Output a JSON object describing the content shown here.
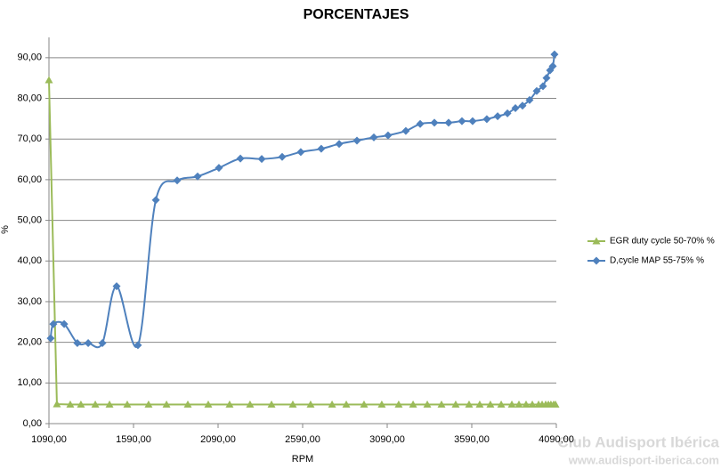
{
  "chart_data": {
    "type": "line",
    "title": "PORCENTAJES",
    "x_label": "RPM",
    "y_label": "%",
    "xlim": [
      1090,
      4090
    ],
    "xticks": [
      {
        "value": 1090,
        "label": "1090,00"
      },
      {
        "value": 1590,
        "label": "1590,00"
      },
      {
        "value": 2090,
        "label": "2090,00"
      },
      {
        "value": 2590,
        "label": "2590,00"
      },
      {
        "value": 3090,
        "label": "3090,00"
      },
      {
        "value": 3590,
        "label": "3590,00"
      },
      {
        "value": 4090,
        "label": "4090,00"
      }
    ],
    "ylim": [
      0,
      95
    ],
    "yticks": [
      {
        "value": 0,
        "label": "0,00"
      },
      {
        "value": 10,
        "label": "10,00"
      },
      {
        "value": 20,
        "label": "20,00"
      },
      {
        "value": 30,
        "label": "30,00"
      },
      {
        "value": 40,
        "label": "40,00"
      },
      {
        "value": 50,
        "label": "50,00"
      },
      {
        "value": 60,
        "label": "60,00"
      },
      {
        "value": 70,
        "label": "70,00"
      },
      {
        "value": 80,
        "label": "80,00"
      },
      {
        "value": 90,
        "label": "90,00"
      }
    ],
    "grid": true,
    "legend": "right",
    "series": [
      {
        "name": "EGR duty cycle 50-70%  %",
        "color": "#9bbb59",
        "marker": "triangle",
        "smooth": false,
        "x": [
          1090,
          1137,
          1216,
          1279,
          1364,
          1448,
          1553,
          1679,
          1785,
          1911,
          2032,
          2158,
          2279,
          2406,
          2532,
          2637,
          2764,
          2848,
          2953,
          3058,
          3158,
          3243,
          3327,
          3411,
          3495,
          3574,
          3637,
          3700,
          3764,
          3827,
          3869,
          3911,
          3948,
          3985,
          4006,
          4027,
          4043,
          4058,
          4074,
          4085
        ],
        "values": [
          84.5,
          4.8,
          4.7,
          4.7,
          4.7,
          4.7,
          4.7,
          4.7,
          4.7,
          4.7,
          4.7,
          4.7,
          4.7,
          4.7,
          4.7,
          4.7,
          4.7,
          4.7,
          4.7,
          4.7,
          4.7,
          4.7,
          4.7,
          4.7,
          4.7,
          4.7,
          4.7,
          4.7,
          4.7,
          4.7,
          4.7,
          4.7,
          4.7,
          4.7,
          4.7,
          4.7,
          4.7,
          4.7,
          4.7,
          4.7
        ]
      },
      {
        "name": "D,cycle MAP 55-75%  %",
        "color": "#4f81bd",
        "marker": "diamond",
        "smooth": true,
        "x": [
          1100,
          1116,
          1180,
          1258,
          1322,
          1406,
          1490,
          1616,
          1722,
          1848,
          1969,
          2095,
          2222,
          2348,
          2469,
          2579,
          2700,
          2806,
          2911,
          3011,
          3095,
          3200,
          3285,
          3369,
          3453,
          3532,
          3595,
          3679,
          3743,
          3801,
          3848,
          3890,
          3932,
          3974,
          4011,
          4032,
          4053,
          4069,
          4079
        ],
        "values": [
          21,
          24.5,
          24.5,
          19.8,
          19.8,
          19.8,
          33.8,
          19.3,
          55,
          59.8,
          60.8,
          62.9,
          65.2,
          65.1,
          65.6,
          66.8,
          67.6,
          68.8,
          69.6,
          70.4,
          70.9,
          72.0,
          73.7,
          74.0,
          74.0,
          74.4,
          74.4,
          74.9,
          75.6,
          76.3,
          77.6,
          78.2,
          79.6,
          81.8,
          83.0,
          85.0,
          86.9,
          87.9,
          90.8
        ]
      }
    ]
  },
  "watermark": {
    "name": "Club Audisport Ibérica",
    "url": "www.audisport-iberica.com"
  }
}
